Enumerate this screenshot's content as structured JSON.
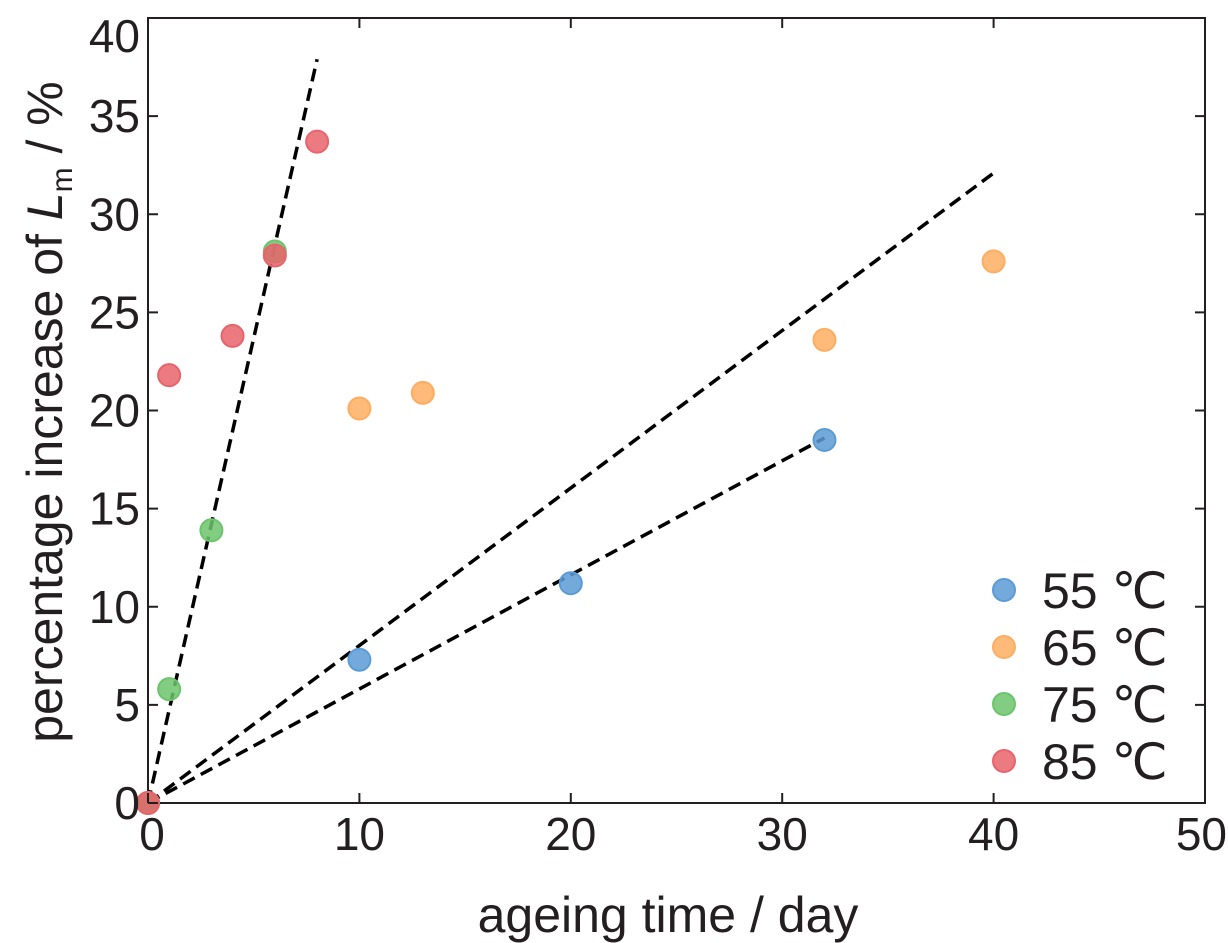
{
  "chart_data": {
    "type": "scatter",
    "xlabel": "ageing time / day",
    "ylabel": {
      "prefix": "percentage increase of ",
      "symbol": "L",
      "subscript": "m",
      "suffix": " / %"
    },
    "xlim": [
      0,
      50
    ],
    "ylim": [
      0,
      40
    ],
    "xticks": [
      "0",
      "10",
      "20",
      "30",
      "40",
      "50"
    ],
    "yticks": [
      "0",
      "5",
      "10",
      "15",
      "20",
      "25",
      "30",
      "35",
      "40"
    ],
    "grid": false,
    "legend_position": "bottom-right",
    "series": [
      {
        "name": "55 ℃",
        "color": "#5b9bd5",
        "points": [
          [
            0,
            0
          ],
          [
            10,
            7.3
          ],
          [
            20,
            11.2
          ],
          [
            32,
            18.5
          ]
        ]
      },
      {
        "name": "65 ℃",
        "color": "#fdae61",
        "points": [
          [
            0,
            0
          ],
          [
            10,
            20.1
          ],
          [
            13,
            20.9
          ],
          [
            32,
            23.6
          ],
          [
            40,
            27.6
          ]
        ]
      },
      {
        "name": "75 ℃",
        "color": "#6cc46c",
        "points": [
          [
            0,
            0
          ],
          [
            1,
            5.8
          ],
          [
            3,
            13.9
          ],
          [
            6,
            28.1
          ]
        ]
      },
      {
        "name": "85 ℃",
        "color": "#e8636b",
        "points": [
          [
            0,
            0
          ],
          [
            1,
            21.8
          ],
          [
            4,
            23.8
          ],
          [
            6,
            27.9
          ],
          [
            8,
            33.7
          ]
        ]
      }
    ],
    "fit_lines": [
      {
        "x": [
          0,
          32
        ],
        "y": [
          0,
          18.6
        ]
      },
      {
        "x": [
          0,
          40
        ],
        "y": [
          0,
          32.1
        ]
      },
      {
        "x": [
          0,
          8
        ],
        "y": [
          0,
          37.9
        ]
      }
    ]
  }
}
